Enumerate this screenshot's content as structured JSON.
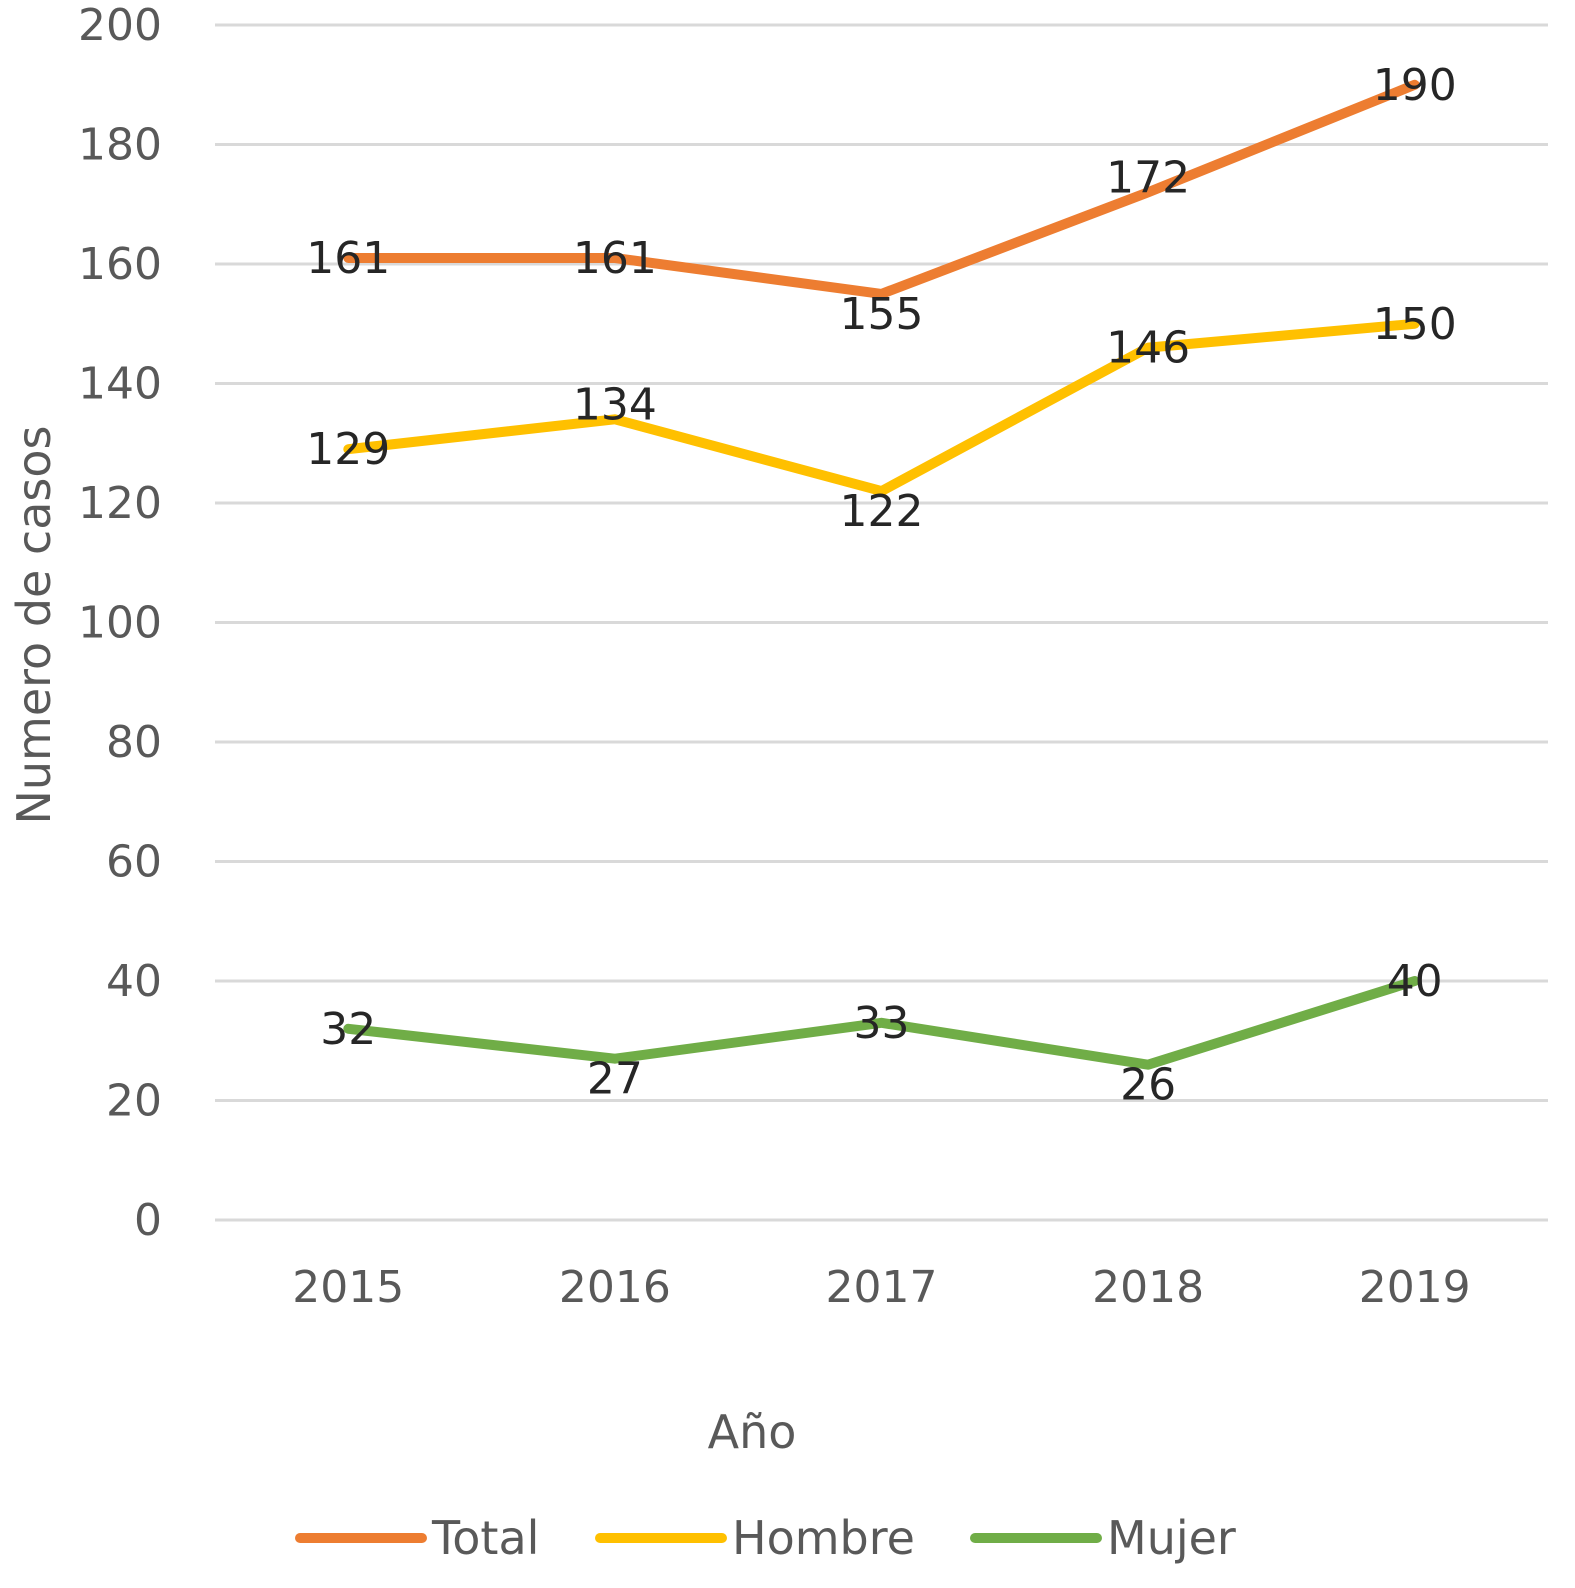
{
  "chart_data": {
    "type": "line",
    "categories": [
      "2015",
      "2016",
      "2017",
      "2018",
      "2019"
    ],
    "series": [
      {
        "name": "Total",
        "color": "#ED7D31",
        "values": [
          161,
          161,
          155,
          172,
          190
        ]
      },
      {
        "name": "Hombre",
        "color": "#FFC000",
        "values": [
          129,
          134,
          122,
          146,
          150
        ]
      },
      {
        "name": "Mujer",
        "color": "#70AD47",
        "values": [
          32,
          27,
          33,
          26,
          40
        ]
      }
    ],
    "xlabel": "Año",
    "ylabel": "Numero de casos",
    "ylim": [
      0,
      200
    ],
    "yticks": [
      0,
      20,
      40,
      60,
      80,
      100,
      120,
      140,
      160,
      180,
      200
    ],
    "grid": true,
    "legend": "bottom",
    "data_labels": true
  }
}
